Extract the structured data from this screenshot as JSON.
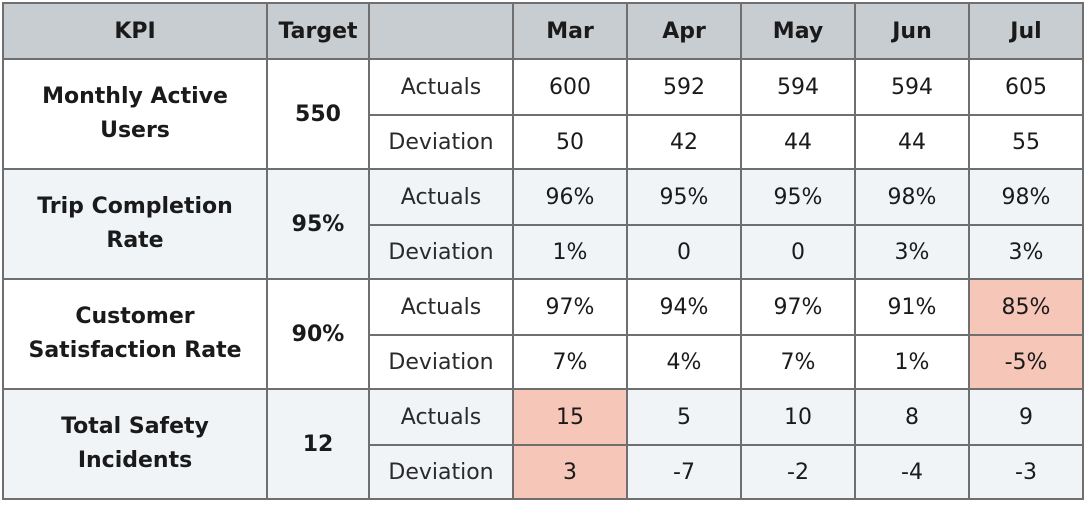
{
  "headers": [
    "KPI",
    "Target",
    "",
    "Mar",
    "Apr",
    "May",
    "Jun",
    "Jul"
  ],
  "kpis": [
    {
      "name_line1": "Monthly Active",
      "name_line2": "Users",
      "target": "550",
      "actuals_label": "Actuals",
      "actuals": [
        "600",
        "592",
        "594",
        "594",
        "605"
      ],
      "deviation_label": "Deviation",
      "deviation": [
        "50",
        "42",
        "44",
        "44",
        "55"
      ]
    },
    {
      "name_line1": "Trip Completion",
      "name_line2": "Rate",
      "target": "95%",
      "actuals_label": "Actuals",
      "actuals": [
        "96%",
        "95%",
        "95%",
        "98%",
        "98%"
      ],
      "deviation_label": "Deviation",
      "deviation": [
        "1%",
        "0",
        "0",
        "3%",
        "3%"
      ]
    },
    {
      "name_line1": "Customer",
      "name_line2": "Satisfaction Rate",
      "target": "90%",
      "actuals_label": "Actuals",
      "actuals": [
        "97%",
        "94%",
        "97%",
        "91%",
        "85%"
      ],
      "deviation_label": "Deviation",
      "deviation": [
        "7%",
        "4%",
        "7%",
        "1%",
        "-5%"
      ]
    },
    {
      "name_line1": "Total Safety",
      "name_line2": "Incidents",
      "target": "12",
      "actuals_label": "Actuals",
      "actuals": [
        "15",
        "5",
        "10",
        "8",
        "9"
      ],
      "deviation_label": "Deviation",
      "deviation": [
        "3",
        "-7",
        "-2",
        "-4",
        "-3"
      ]
    }
  ],
  "colors": {
    "header_bg": "#c8cdd2",
    "alt_row_bg": "#f1f4f7",
    "flag_bg": "#f6c6b9",
    "border": "#6f6f6f"
  }
}
